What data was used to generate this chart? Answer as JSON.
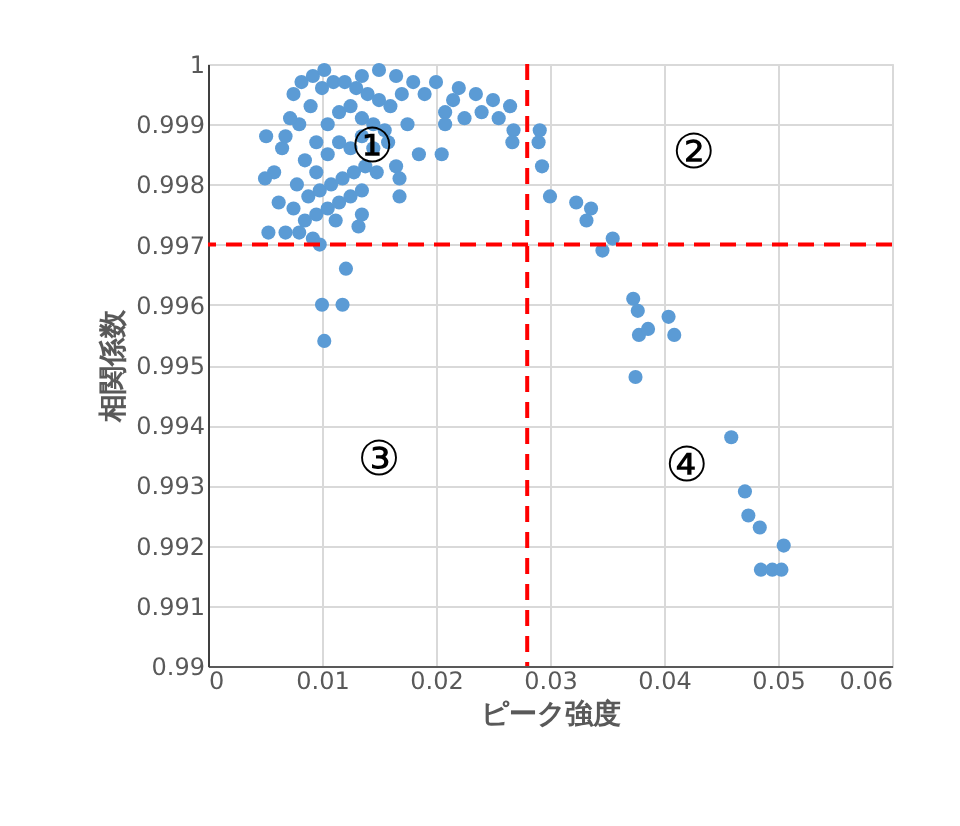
{
  "chart_data": {
    "type": "scatter",
    "xlabel": "ピーク強度",
    "ylabel": "相関係数",
    "xlim": [
      0,
      0.06
    ],
    "xticks": [
      0,
      0.01,
      0.02,
      0.03,
      0.04,
      0.05,
      0.06
    ],
    "ylim": [
      0.99,
      1
    ],
    "yticks": [
      0.99,
      0.991,
      0.992,
      0.993,
      0.994,
      0.995,
      0.996,
      0.997,
      0.998,
      0.999,
      1
    ],
    "grid": true,
    "marker": "circle",
    "series": [
      {
        "color": "#5b9bd5",
        "x": [
          0.0135,
          0.015,
          0.0165,
          0.018,
          0.02,
          0.022,
          0.0235,
          0.025,
          0.0265,
          0.0255,
          0.024,
          0.0215,
          0.019,
          0.017,
          0.0225,
          0.0208,
          0.0268,
          0.008,
          0.009,
          0.01,
          0.011,
          0.012,
          0.013,
          0.014,
          0.015,
          0.016,
          0.0095,
          0.0105,
          0.0115,
          0.0125,
          0.0135,
          0.0145,
          0.0155,
          0.0085,
          0.0095,
          0.0105,
          0.0115,
          0.0125,
          0.0135,
          0.0145,
          0.0158,
          0.0078,
          0.0088,
          0.0098,
          0.0108,
          0.0118,
          0.0128,
          0.0138,
          0.0148,
          0.0165,
          0.0075,
          0.0085,
          0.0095,
          0.0105,
          0.0115,
          0.0125,
          0.0135,
          0.0068,
          0.008,
          0.0092,
          0.0112,
          0.0135,
          0.0132,
          0.0065,
          0.0058,
          0.0062,
          0.0072,
          0.0068,
          0.0075,
          0.0082,
          0.0092,
          0.0102,
          0.0185,
          0.0175,
          0.0168,
          0.0208,
          0.0053,
          0.005,
          0.0051,
          0.0205,
          0.0168,
          0.0098,
          0.0121,
          0.01,
          0.0118,
          0.0102,
          0.0291,
          0.0267,
          0.029,
          0.0293,
          0.03,
          0.0323,
          0.0336,
          0.0332,
          0.0346,
          0.0355,
          0.0373,
          0.0377,
          0.0378,
          0.0386,
          0.0404,
          0.0409,
          0.0375,
          0.0459,
          0.0471,
          0.0474,
          0.0484,
          0.0505,
          0.0485,
          0.0495,
          0.0503
        ],
        "values": [
          0.9998,
          0.9999,
          0.9998,
          0.9997,
          0.9997,
          0.9996,
          0.9995,
          0.9994,
          0.9993,
          0.9991,
          0.9992,
          0.9994,
          0.9995,
          0.9995,
          0.9991,
          0.9992,
          0.9989,
          0.999,
          0.9993,
          0.9996,
          0.9997,
          0.9997,
          0.9996,
          0.9995,
          0.9994,
          0.9993,
          0.9987,
          0.999,
          0.9992,
          0.9993,
          0.9991,
          0.999,
          0.9989,
          0.9984,
          0.9982,
          0.9985,
          0.9987,
          0.9986,
          0.9988,
          0.9986,
          0.9987,
          0.998,
          0.9978,
          0.9979,
          0.998,
          0.9981,
          0.9982,
          0.9983,
          0.9982,
          0.9983,
          0.9976,
          0.9974,
          0.9975,
          0.9976,
          0.9977,
          0.9978,
          0.9979,
          0.9972,
          0.9972,
          0.9971,
          0.9974,
          0.9975,
          0.9973,
          0.9986,
          0.9982,
          0.9977,
          0.9991,
          0.9988,
          0.9995,
          0.9997,
          0.9998,
          0.9999,
          0.9985,
          0.999,
          0.9978,
          0.999,
          0.9972,
          0.9981,
          0.9988,
          0.9985,
          0.9981,
          0.997,
          0.9966,
          0.996,
          0.996,
          0.9954,
          0.9989,
          0.9987,
          0.9987,
          0.9983,
          0.9978,
          0.9977,
          0.9976,
          0.9974,
          0.9969,
          0.9971,
          0.9961,
          0.9959,
          0.9955,
          0.9956,
          0.9958,
          0.9955,
          0.9948,
          0.9938,
          0.9929,
          0.9925,
          0.9923,
          0.992,
          0.9916,
          0.9916,
          0.9916
        ]
      }
    ],
    "ref_lines": [
      {
        "axis": "x",
        "value": 0.028,
        "color": "#ff0000",
        "line_style": "dashed"
      },
      {
        "axis": "y",
        "value": 0.997,
        "color": "#ff0000",
        "line_style": "dashed"
      }
    ],
    "annotations": [
      "①",
      "②",
      "③",
      "④"
    ]
  }
}
